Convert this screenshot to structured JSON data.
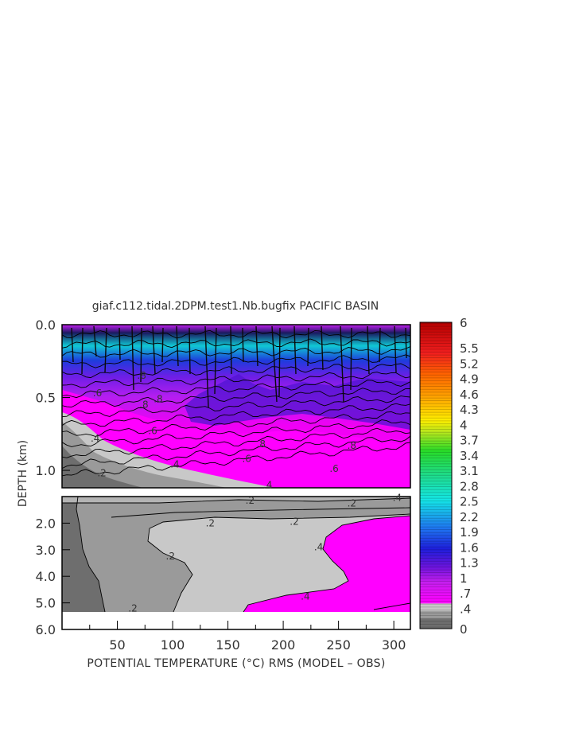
{
  "chart_data": {
    "type": "heatmap",
    "title": "giaf.c112.tidal.2DPM.test1.Nb.bugfix PACIFIC BASIN",
    "xlabel": "POTENTIAL TEMPERATURE (°C) RMS (MODEL – OBS)",
    "ylabel": "DEPTH (km)",
    "xlim": [
      0,
      315
    ],
    "x_ticks": [
      50,
      100,
      150,
      200,
      250,
      300
    ],
    "x_tick_labels": [
      "50",
      "100",
      "150",
      "200",
      "250",
      "300"
    ],
    "upper_panel": {
      "ylim": [
        0,
        1.12
      ],
      "y_ticks": [
        0.0,
        0.5,
        1.0
      ],
      "y_tick_labels": [
        "0.0",
        "0.5",
        "1.0"
      ],
      "contour_labels": [
        {
          "x": 30,
          "y": 0.78,
          "text": ".4"
        },
        {
          "x": 36,
          "y": 1.02,
          "text": ".2"
        },
        {
          "x": 32,
          "y": 0.47,
          "text": ".6"
        },
        {
          "x": 72,
          "y": 0.35,
          "text": ".8"
        },
        {
          "x": 74,
          "y": 0.55,
          "text": ".8"
        },
        {
          "x": 87,
          "y": 0.51,
          "text": ".8"
        },
        {
          "x": 82,
          "y": 0.73,
          "text": ".6"
        },
        {
          "x": 102,
          "y": 0.96,
          "text": ".4"
        },
        {
          "x": 180,
          "y": 0.82,
          "text": ".8"
        },
        {
          "x": 167,
          "y": 0.92,
          "text": ".6"
        },
        {
          "x": 262,
          "y": 0.83,
          "text": ".8"
        },
        {
          "x": 246,
          "y": 0.99,
          "text": ".6"
        },
        {
          "x": 186,
          "y": 1.1,
          "text": ".4"
        }
      ]
    },
    "lower_panel": {
      "ylim": [
        1.0,
        6.0
      ],
      "y_ticks": [
        2.0,
        3.0,
        4.0,
        5.0,
        6.0
      ],
      "y_tick_labels": [
        "2.0",
        "3.0",
        "4.0",
        "5.0",
        "6.0"
      ],
      "contour_labels": [
        {
          "x": 170,
          "y": 1.15,
          "text": ".2"
        },
        {
          "x": 262,
          "y": 1.25,
          "text": ".2"
        },
        {
          "x": 303,
          "y": 1.05,
          "text": ".4"
        },
        {
          "x": 134,
          "y": 2.0,
          "text": ".2"
        },
        {
          "x": 210,
          "y": 1.95,
          "text": ".2"
        },
        {
          "x": 98,
          "y": 3.25,
          "text": ".2"
        },
        {
          "x": 232,
          "y": 2.9,
          "text": ".4"
        },
        {
          "x": 64,
          "y": 5.2,
          "text": ".2"
        },
        {
          "x": 220,
          "y": 4.75,
          "text": ".4"
        }
      ]
    },
    "colorbar": {
      "min": 0,
      "max": 6,
      "labels": [
        "6",
        "5.5",
        "5.2",
        "4.9",
        "4.6",
        "4.3",
        "4",
        "3.7",
        "3.4",
        "3.1",
        "2.8",
        "2.5",
        "2.2",
        "1.9",
        "1.6",
        "1.3",
        "1",
        ".7",
        ".4",
        "0"
      ],
      "colors": {
        "dark_gray": "#6e6e6e",
        "mid_gray": "#9a9a9a",
        "light_gray": "#c8c8c8",
        "magenta": "#ff00ff",
        "purple": "#8c14dc",
        "blue": "#1e28dc",
        "cyan": "#14e6e6",
        "green": "#28dc28",
        "yellow": "#ffee00",
        "orange": "#ff8c00",
        "red": "#c00000"
      }
    }
  }
}
